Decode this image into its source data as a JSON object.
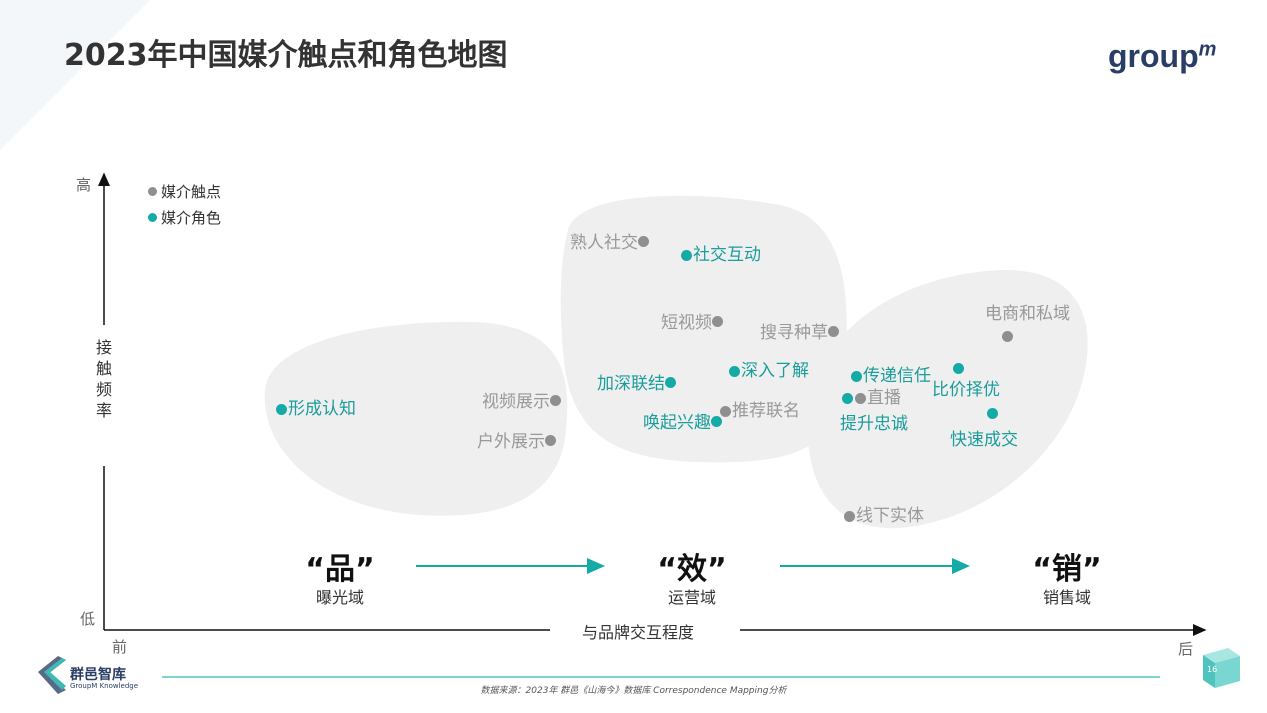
{
  "title": "2023年中国媒介触点和角色地图",
  "brand_logo": "groupm",
  "colors": {
    "touchpoint": "#8f8f8f",
    "role": "#14aaa6",
    "blob": "#efefef"
  },
  "legend": [
    {
      "label": "媒介触点",
      "color": "#8f8f8f"
    },
    {
      "label": "媒介角色",
      "color": "#14aaa6"
    }
  ],
  "y_axis": {
    "high": "高",
    "low": "低",
    "label": "接触频率"
  },
  "x_axis": {
    "start": "前",
    "end": "后",
    "label": "与品牌交互程度"
  },
  "touchpoints": [
    "熟人社交",
    "短视频",
    "搜寻种草",
    "电商和私域",
    "视频展示",
    "户外展示",
    "推荐联名",
    "直播",
    "线下实体"
  ],
  "roles": [
    "形成认知",
    "社交互动",
    "加深联结",
    "深入了解",
    "唤起兴趣",
    "传递信任",
    "提升忠诚",
    "比价择优",
    "快速成交"
  ],
  "domains": [
    {
      "big": "“品”",
      "small": "曝光域"
    },
    {
      "big": "“效”",
      "small": "运营域"
    },
    {
      "big": "“销”",
      "small": "销售域"
    }
  ],
  "footer": {
    "logo_cn": "群邑智库",
    "logo_en": "GroupM Knowledge",
    "source": "数据来源：2023年 群邑《山海今》数据库 Correspondence Mapping分析",
    "page": "16"
  }
}
